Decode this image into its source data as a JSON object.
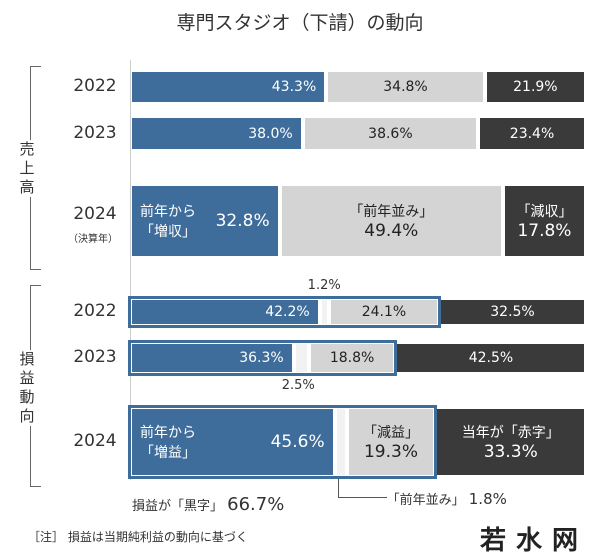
{
  "title": "専門スタジオ（下請）の動向",
  "side_labels": {
    "sales": "売上高",
    "profit": "損益動向"
  },
  "note": "［注］ 損益は当期純利益の動向に基づく",
  "watermark": "若水网",
  "colors": {
    "increase": "#3e6c9b",
    "flat": "#d4d4d4",
    "decrease": "#3a3a3a"
  },
  "chart_data": {
    "type": "bar",
    "orientation": "horizontal",
    "stacked": true,
    "xlim": [
      0,
      100
    ],
    "groups": [
      {
        "name": "売上高",
        "rows": [
          {
            "year": "2022",
            "segments": [
              {
                "value": 43.3,
                "label": "43.3%",
                "kind": "blue"
              },
              {
                "value": 34.8,
                "label": "34.8%",
                "kind": "gray"
              },
              {
                "value": 21.9,
                "label": "21.9%",
                "kind": "dark"
              }
            ]
          },
          {
            "year": "2023",
            "segments": [
              {
                "value": 38.0,
                "label": "38.0%",
                "kind": "blue"
              },
              {
                "value": 38.6,
                "label": "38.6%",
                "kind": "gray"
              },
              {
                "value": 23.4,
                "label": "23.4%",
                "kind": "dark"
              }
            ]
          },
          {
            "year": "2024",
            "year_note": "（決算年）",
            "segments": [
              {
                "value": 32.8,
                "label": "32.8%",
                "caption": "前年から\n「増収」",
                "kind": "blue"
              },
              {
                "value": 49.4,
                "label": "49.4%",
                "caption": "「前年並み」",
                "kind": "gray"
              },
              {
                "value": 17.8,
                "label": "17.8%",
                "caption": "「減収」",
                "kind": "dark"
              }
            ]
          }
        ]
      },
      {
        "name": "損益動向",
        "rows": [
          {
            "year": "2022",
            "segments": [
              {
                "value": 42.2,
                "label": "42.2%",
                "kind": "blue"
              },
              {
                "value": 1.2,
                "label": "1.2%",
                "kind": "flat"
              },
              {
                "value": 24.1,
                "label": "24.1%",
                "kind": "gray"
              },
              {
                "value": 32.5,
                "label": "32.5%",
                "kind": "dark"
              }
            ]
          },
          {
            "year": "2023",
            "segments": [
              {
                "value": 36.3,
                "label": "36.3%",
                "kind": "blue"
              },
              {
                "value": 2.5,
                "label": "2.5%",
                "kind": "flat"
              },
              {
                "value": 18.8,
                "label": "18.8%",
                "kind": "gray"
              },
              {
                "value": 42.5,
                "label": "42.5%",
                "kind": "dark"
              }
            ]
          },
          {
            "year": "2024",
            "segments": [
              {
                "value": 45.6,
                "label": "45.6%",
                "caption": "前年から\n「増益」",
                "kind": "blue"
              },
              {
                "value": 1.8,
                "label": "1.8%",
                "caption": "「前年並み」",
                "kind": "flat"
              },
              {
                "value": 19.3,
                "label": "19.3%",
                "caption": "「減益」",
                "kind": "gray"
              },
              {
                "value": 33.3,
                "label": "33.3%",
                "caption": "当年が「赤字」",
                "kind": "dark"
              }
            ]
          }
        ]
      }
    ],
    "annotations": {
      "black_label": "損益が「黒字」",
      "black_value": "66.7%"
    }
  }
}
